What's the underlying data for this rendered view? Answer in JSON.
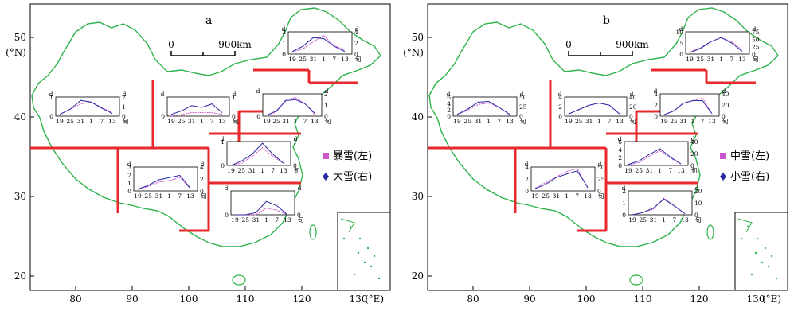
{
  "panels": [
    {
      "letter": "a",
      "scale_left": "0",
      "scale_right": "900km",
      "legend": [
        {
          "label": "暴雪(左)",
          "color": "#cc55cc",
          "marker": "square"
        },
        {
          "label": "大雪(右)",
          "color": "#2a2aa0",
          "marker": "diamond"
        }
      ],
      "insets": [
        {
          "region": "northeast",
          "left_unit": "d",
          "right_unit": "d",
          "left_ticks": [
            "0",
            "1",
            "2"
          ],
          "right_ticks": [
            "0",
            "2",
            "4"
          ],
          "x_ticks": [
            "19",
            "25",
            "31",
            "1",
            "7",
            "13"
          ],
          "x_unit": "旬"
        },
        {
          "region": "northwest",
          "left_unit": "d",
          "right_unit": "d",
          "left_ticks": [
            "0",
            "1"
          ],
          "right_ticks": [
            "0",
            "1",
            "2"
          ],
          "x_ticks": [
            "19",
            "25",
            "31",
            "1",
            "7",
            "13"
          ],
          "x_unit": "旬"
        },
        {
          "region": "north-central",
          "left_unit": "d",
          "right_unit": "d",
          "left_ticks": [
            "0"
          ],
          "right_ticks": [
            "0",
            "1"
          ],
          "x_ticks": [
            "19",
            "25",
            "31",
            "1",
            "7",
            "13"
          ],
          "x_unit": "旬"
        },
        {
          "region": "north",
          "left_unit": "d",
          "right_unit": "d",
          "left_ticks": [
            "0"
          ],
          "right_ticks": [
            "0",
            "1",
            "2"
          ],
          "x_ticks": [
            "19",
            "25",
            "31",
            "1",
            "7",
            "13"
          ],
          "x_unit": "旬"
        },
        {
          "region": "huanghuai",
          "left_unit": "d",
          "right_unit": "d",
          "left_ticks": [
            "0",
            "1"
          ],
          "right_ticks": [
            "0",
            "1"
          ],
          "x_ticks": [
            "19",
            "25",
            "31",
            "1",
            "7",
            "13"
          ],
          "x_unit": "旬"
        },
        {
          "region": "southwest",
          "left_unit": "d",
          "right_unit": "d",
          "left_ticks": [
            "0",
            "1",
            "2",
            "3"
          ],
          "right_ticks": [
            "0",
            "2",
            "4"
          ],
          "x_ticks": [
            "19",
            "25",
            "31",
            "1",
            "7",
            "13"
          ],
          "x_unit": "旬"
        },
        {
          "region": "south",
          "left_unit": "d",
          "right_unit": "d",
          "left_ticks": [
            "0"
          ],
          "right_ticks": [
            "0"
          ],
          "x_ticks": [
            "19",
            "25",
            "31",
            "1",
            "7",
            "13"
          ],
          "x_unit": "旬"
        }
      ]
    },
    {
      "letter": "b",
      "scale_left": "0",
      "scale_right": "900km",
      "legend": [
        {
          "label": "中雪(左)",
          "color": "#cc55cc",
          "marker": "square"
        },
        {
          "label": "小雪(右)",
          "color": "#2a2aa0",
          "marker": "diamond"
        }
      ],
      "insets": [
        {
          "region": "northeast",
          "left_unit": "d",
          "right_unit": "d",
          "left_ticks": [
            "0",
            "5",
            "10"
          ],
          "right_ticks": [
            "0",
            "25",
            "50",
            "75"
          ],
          "x_ticks": [
            "19",
            "25",
            "31",
            "1",
            "7",
            "13"
          ],
          "x_unit": "旬"
        },
        {
          "region": "northwest",
          "left_unit": "d",
          "right_unit": "d",
          "left_ticks": [
            "0",
            "2",
            "4",
            "6"
          ],
          "right_ticks": [
            "0",
            "25",
            "50"
          ],
          "x_ticks": [
            "19",
            "25",
            "31",
            "1",
            "7",
            "13"
          ],
          "x_unit": "旬"
        },
        {
          "region": "north-central",
          "left_unit": "d",
          "right_unit": "d",
          "left_ticks": [
            "0",
            "2",
            "4"
          ],
          "right_ticks": [
            "0",
            "20",
            "40"
          ],
          "x_ticks": [
            "19",
            "25",
            "31",
            "1",
            "7",
            "13"
          ],
          "x_unit": "旬"
        },
        {
          "region": "north",
          "left_unit": "d",
          "right_unit": "d",
          "left_ticks": [
            "0",
            "2",
            "4"
          ],
          "right_ticks": [
            "0",
            "20",
            "40"
          ],
          "x_ticks": [
            "19",
            "25",
            "31",
            "1",
            "7",
            "13"
          ],
          "x_unit": "旬"
        },
        {
          "region": "huanghuai",
          "left_unit": "d",
          "right_unit": "d",
          "left_ticks": [
            "0",
            "2",
            "4",
            "6"
          ],
          "right_ticks": [
            "0",
            "20",
            "40"
          ],
          "x_ticks": [
            "19",
            "25",
            "31",
            "1",
            "7",
            "13"
          ],
          "x_unit": "旬"
        },
        {
          "region": "southwest",
          "left_unit": "d",
          "right_unit": "d",
          "left_ticks": [
            "0",
            "2",
            "4"
          ],
          "right_ticks": [
            "0",
            "25",
            "50"
          ],
          "x_ticks": [
            "19",
            "25",
            "31",
            "1",
            "7",
            "13"
          ],
          "x_unit": "旬"
        },
        {
          "region": "south",
          "left_unit": "d",
          "right_unit": "d",
          "left_ticks": [
            "0",
            "1",
            "2"
          ],
          "right_ticks": [
            "0",
            "10",
            "20"
          ],
          "x_ticks": [
            "19",
            "25",
            "31",
            "1",
            "7",
            "13"
          ],
          "x_unit": "旬"
        }
      ]
    }
  ],
  "x_axis": {
    "ticks": [
      "80",
      "90",
      "100",
      "110",
      "120",
      "130"
    ],
    "unit": "(°E)"
  },
  "y_axis": {
    "ticks": [
      "50",
      "40",
      "30",
      "20"
    ],
    "unit": "(°N)"
  },
  "colors": {
    "border": "#2db34a",
    "division": "#e8282d",
    "left_series": "#cc55cc",
    "right_series": "#2a2aa0"
  },
  "chart_data": [
    {
      "type": "line",
      "panel": "a",
      "series_names": [
        "暴雪(左)",
        "大雪(右)"
      ],
      "x_categories": [
        "19",
        "25",
        "31",
        "1",
        "7",
        "13"
      ],
      "regions": {
        "northeast": {
          "left": [
            0.2,
            0.5,
            1.2,
            1.8,
            0.8,
            0.4
          ],
          "right": [
            0.5,
            1.5,
            3.2,
            3.0,
            1.5,
            0.5
          ]
        },
        "northwest": {
          "left": [
            0.1,
            0.4,
            0.7,
            0.8,
            0.5,
            0.2
          ],
          "right": [
            0.2,
            0.8,
            1.8,
            1.6,
            0.9,
            0.3
          ]
        },
        "north-central": {
          "left": [
            0.0,
            0.1,
            0.2,
            0.2,
            0.2,
            0.1
          ],
          "right": [
            0.1,
            0.3,
            0.6,
            0.5,
            0.7,
            0.2
          ]
        },
        "north": {
          "left": [
            0.0,
            0.2,
            0.8,
            0.9,
            0.6,
            0.1
          ],
          "right": [
            0.1,
            0.5,
            1.5,
            1.6,
            1.2,
            0.3
          ]
        },
        "huanghuai": {
          "left": [
            0.0,
            0.1,
            0.4,
            0.8,
            0.4,
            0.1
          ],
          "right": [
            0.0,
            0.2,
            0.5,
            1.0,
            0.5,
            0.1
          ]
        },
        "southwest": {
          "left": [
            0.2,
            0.6,
            1.2,
            1.4,
            1.8,
            0.3
          ],
          "right": [
            0.3,
            1.0,
            2.0,
            2.4,
            2.8,
            0.5
          ]
        },
        "south": {
          "left": [
            0.0,
            0.0,
            0.0,
            0.3,
            0.2,
            0.0
          ],
          "right": [
            0.0,
            0.0,
            0.1,
            0.6,
            0.4,
            0.0
          ]
        }
      }
    },
    {
      "type": "line",
      "panel": "b",
      "series_names": [
        "中雪(左)",
        "小雪(右)"
      ],
      "x_categories": [
        "19",
        "25",
        "31",
        "1",
        "7",
        "13"
      ],
      "regions": {
        "northeast": {
          "left": [
            1,
            3,
            6,
            8,
            6,
            2
          ],
          "right": [
            5,
            20,
            45,
            60,
            40,
            10
          ]
        },
        "northwest": {
          "left": [
            0.5,
            2,
            4,
            4.5,
            3,
            0.5
          ],
          "right": [
            5,
            20,
            40,
            42,
            25,
            5
          ]
        },
        "north-central": {
          "left": [
            0.5,
            1.5,
            2.5,
            3,
            2.5,
            0.5
          ],
          "right": [
            5,
            15,
            25,
            30,
            25,
            5
          ]
        },
        "north": {
          "left": [
            0.3,
            1,
            2.5,
            3,
            3.5,
            0.5
          ],
          "right": [
            3,
            10,
            25,
            30,
            30,
            5
          ]
        },
        "huanghuai": {
          "left": [
            0.1,
            0.8,
            2.5,
            4,
            2,
            0.3
          ],
          "right": [
            2,
            8,
            20,
            30,
            15,
            3
          ]
        },
        "southwest": {
          "left": [
            0.5,
            1.5,
            2.5,
            3.5,
            4,
            0.5
          ],
          "right": [
            5,
            15,
            30,
            38,
            45,
            8
          ]
        },
        "south": {
          "left": [
            0.0,
            0.2,
            0.5,
            1.5,
            0.8,
            0.1
          ],
          "right": [
            0,
            2,
            6,
            14,
            8,
            1
          ]
        }
      }
    }
  ]
}
